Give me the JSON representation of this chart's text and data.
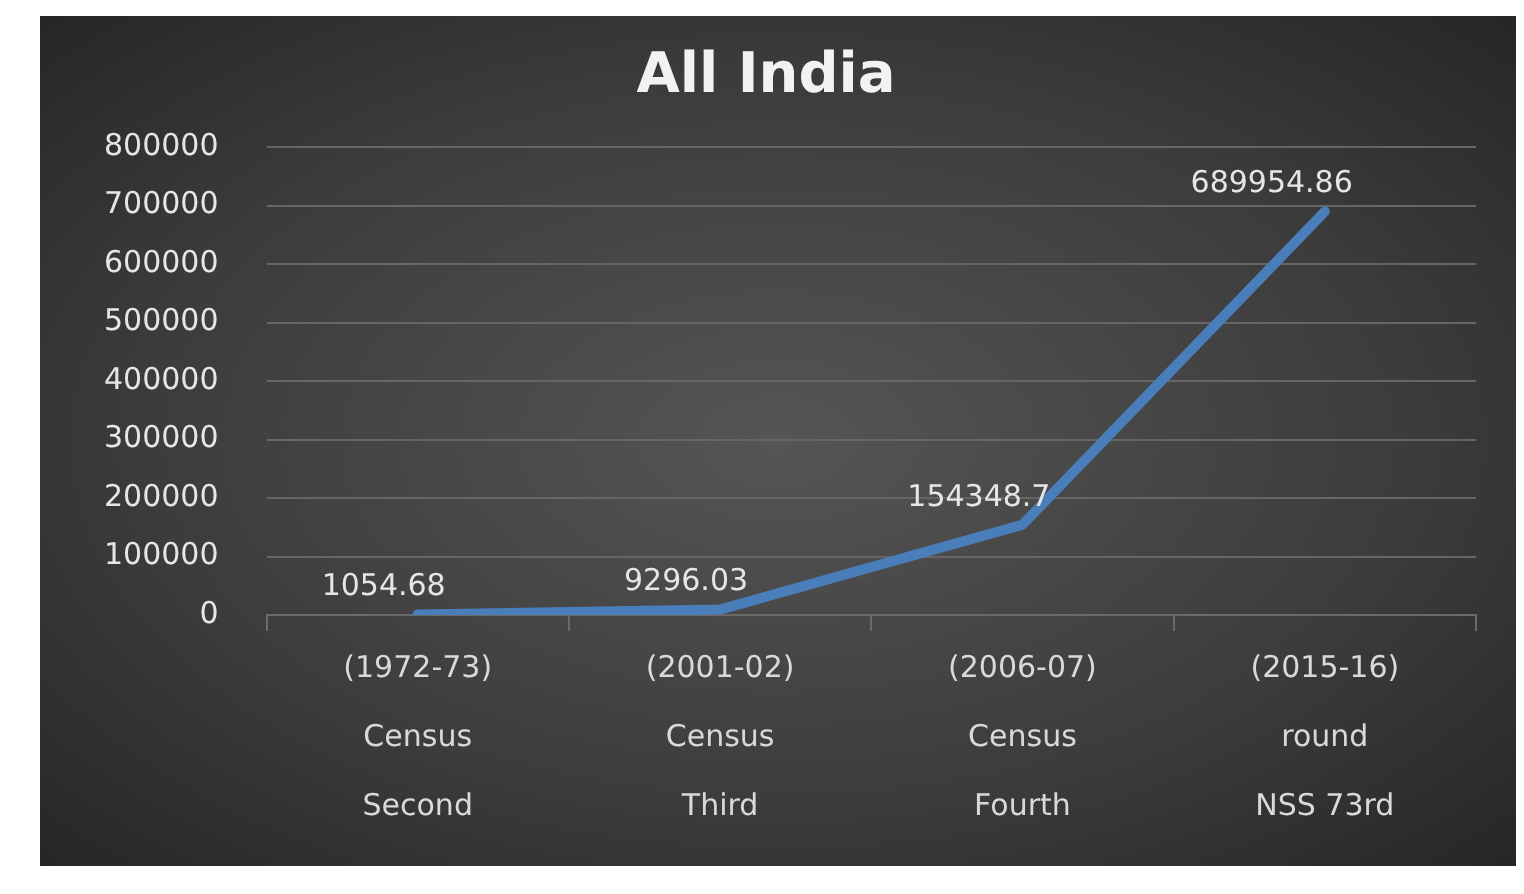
{
  "chart_data": {
    "type": "line",
    "title": "All India",
    "categories": [
      "(1972-73)\nCensus\nSecond",
      "(2001-02)\nCensus\nThird",
      "(2006-07)\nCensus\nFourth",
      "(2015-16)\nround\nNSS 73rd"
    ],
    "series": [
      {
        "color": "#4a7ebb",
        "values": [
          1054.68,
          9296.03,
          154348.7,
          689954.86
        ]
      }
    ],
    "ylim": [
      0,
      800000
    ],
    "yticks": [
      0,
      100000,
      200000,
      300000,
      400000,
      500000,
      600000,
      700000,
      800000
    ],
    "grid": "y",
    "data_labels": true,
    "legend": false,
    "marker": "none",
    "line_style": "solid"
  }
}
